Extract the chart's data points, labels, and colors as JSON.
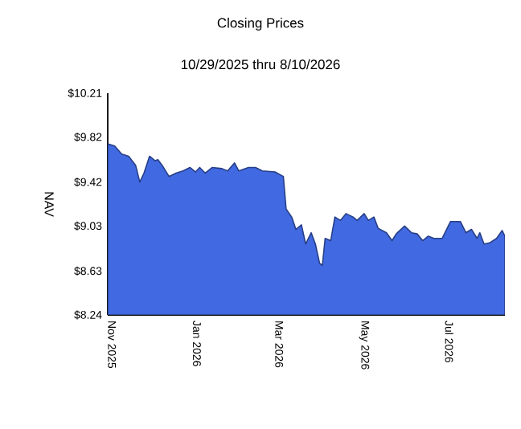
{
  "chart_data": {
    "type": "area",
    "title": "Closing Prices",
    "subtitle": "10/29/2025 thru 8/10/2026",
    "ylabel": "NAV",
    "x": [
      "2025-10-29",
      "2025-11-03",
      "2025-11-08",
      "2025-11-13",
      "2025-11-18",
      "2025-11-21",
      "2025-11-24",
      "2025-11-28",
      "2025-12-02",
      "2025-12-04",
      "2025-12-07",
      "2025-12-12",
      "2025-12-17",
      "2025-12-22",
      "2025-12-27",
      "2025-12-31",
      "2026-01-03",
      "2026-01-07",
      "2026-01-12",
      "2026-01-19",
      "2026-01-23",
      "2026-01-28",
      "2026-01-31",
      "2026-02-07",
      "2026-02-12",
      "2026-02-17",
      "2026-02-26",
      "2026-03-04",
      "2026-03-06",
      "2026-03-10",
      "2026-03-13",
      "2026-03-17",
      "2026-03-20",
      "2026-03-24",
      "2026-03-27",
      "2026-03-30",
      "2026-04-01",
      "2026-04-03",
      "2026-04-07",
      "2026-04-10",
      "2026-04-14",
      "2026-04-18",
      "2026-04-23",
      "2026-04-26",
      "2026-05-01",
      "2026-05-04",
      "2026-05-08",
      "2026-05-11",
      "2026-05-17",
      "2026-05-21",
      "2026-05-24",
      "2026-05-30",
      "2026-06-04",
      "2026-06-08",
      "2026-06-12",
      "2026-06-16",
      "2026-06-20",
      "2026-06-26",
      "2026-07-02",
      "2026-07-09",
      "2026-07-13",
      "2026-07-17",
      "2026-07-21",
      "2026-07-23",
      "2026-07-26",
      "2026-07-30",
      "2026-08-04",
      "2026-08-08",
      "2026-08-10"
    ],
    "values": [
      9.76,
      9.74,
      9.67,
      9.65,
      9.57,
      9.42,
      9.5,
      9.65,
      9.61,
      9.62,
      9.57,
      9.47,
      9.5,
      9.52,
      9.55,
      9.51,
      9.55,
      9.5,
      9.55,
      9.54,
      9.52,
      9.59,
      9.52,
      9.55,
      9.55,
      9.52,
      9.51,
      9.47,
      9.18,
      9.11,
      9.0,
      9.04,
      8.87,
      8.97,
      8.87,
      8.7,
      8.68,
      8.92,
      8.9,
      9.11,
      9.08,
      9.14,
      9.11,
      9.08,
      9.14,
      9.08,
      9.11,
      9.01,
      8.97,
      8.9,
      8.96,
      9.03,
      8.97,
      8.96,
      8.9,
      8.94,
      8.92,
      8.92,
      9.07,
      9.07,
      8.97,
      9.0,
      8.92,
      8.97,
      8.87,
      8.88,
      8.92,
      8.99,
      8.94
    ],
    "color": "#4169e1",
    "xlim": [
      "2025-10-29",
      "2026-08-10"
    ],
    "xticks": [
      {
        "value": "2025-11-01",
        "label": "Nov 2025"
      },
      {
        "value": "2026-01-01",
        "label": "Jan 2026"
      },
      {
        "value": "2026-03-01",
        "label": "Mar 2026"
      },
      {
        "value": "2026-05-01",
        "label": "May 2026"
      },
      {
        "value": "2026-07-01",
        "label": "Jul 2026"
      }
    ],
    "ylim": [
      8.24,
      10.21
    ],
    "yticks": [
      {
        "value": 8.24,
        "label": "$8.24"
      },
      {
        "value": 8.63,
        "label": "$8.63"
      },
      {
        "value": 9.03,
        "label": "$9.03"
      },
      {
        "value": 9.42,
        "label": "$9.42"
      },
      {
        "value": 9.82,
        "label": "$9.82"
      },
      {
        "value": 10.21,
        "label": "$10.21"
      }
    ],
    "grid": false
  }
}
